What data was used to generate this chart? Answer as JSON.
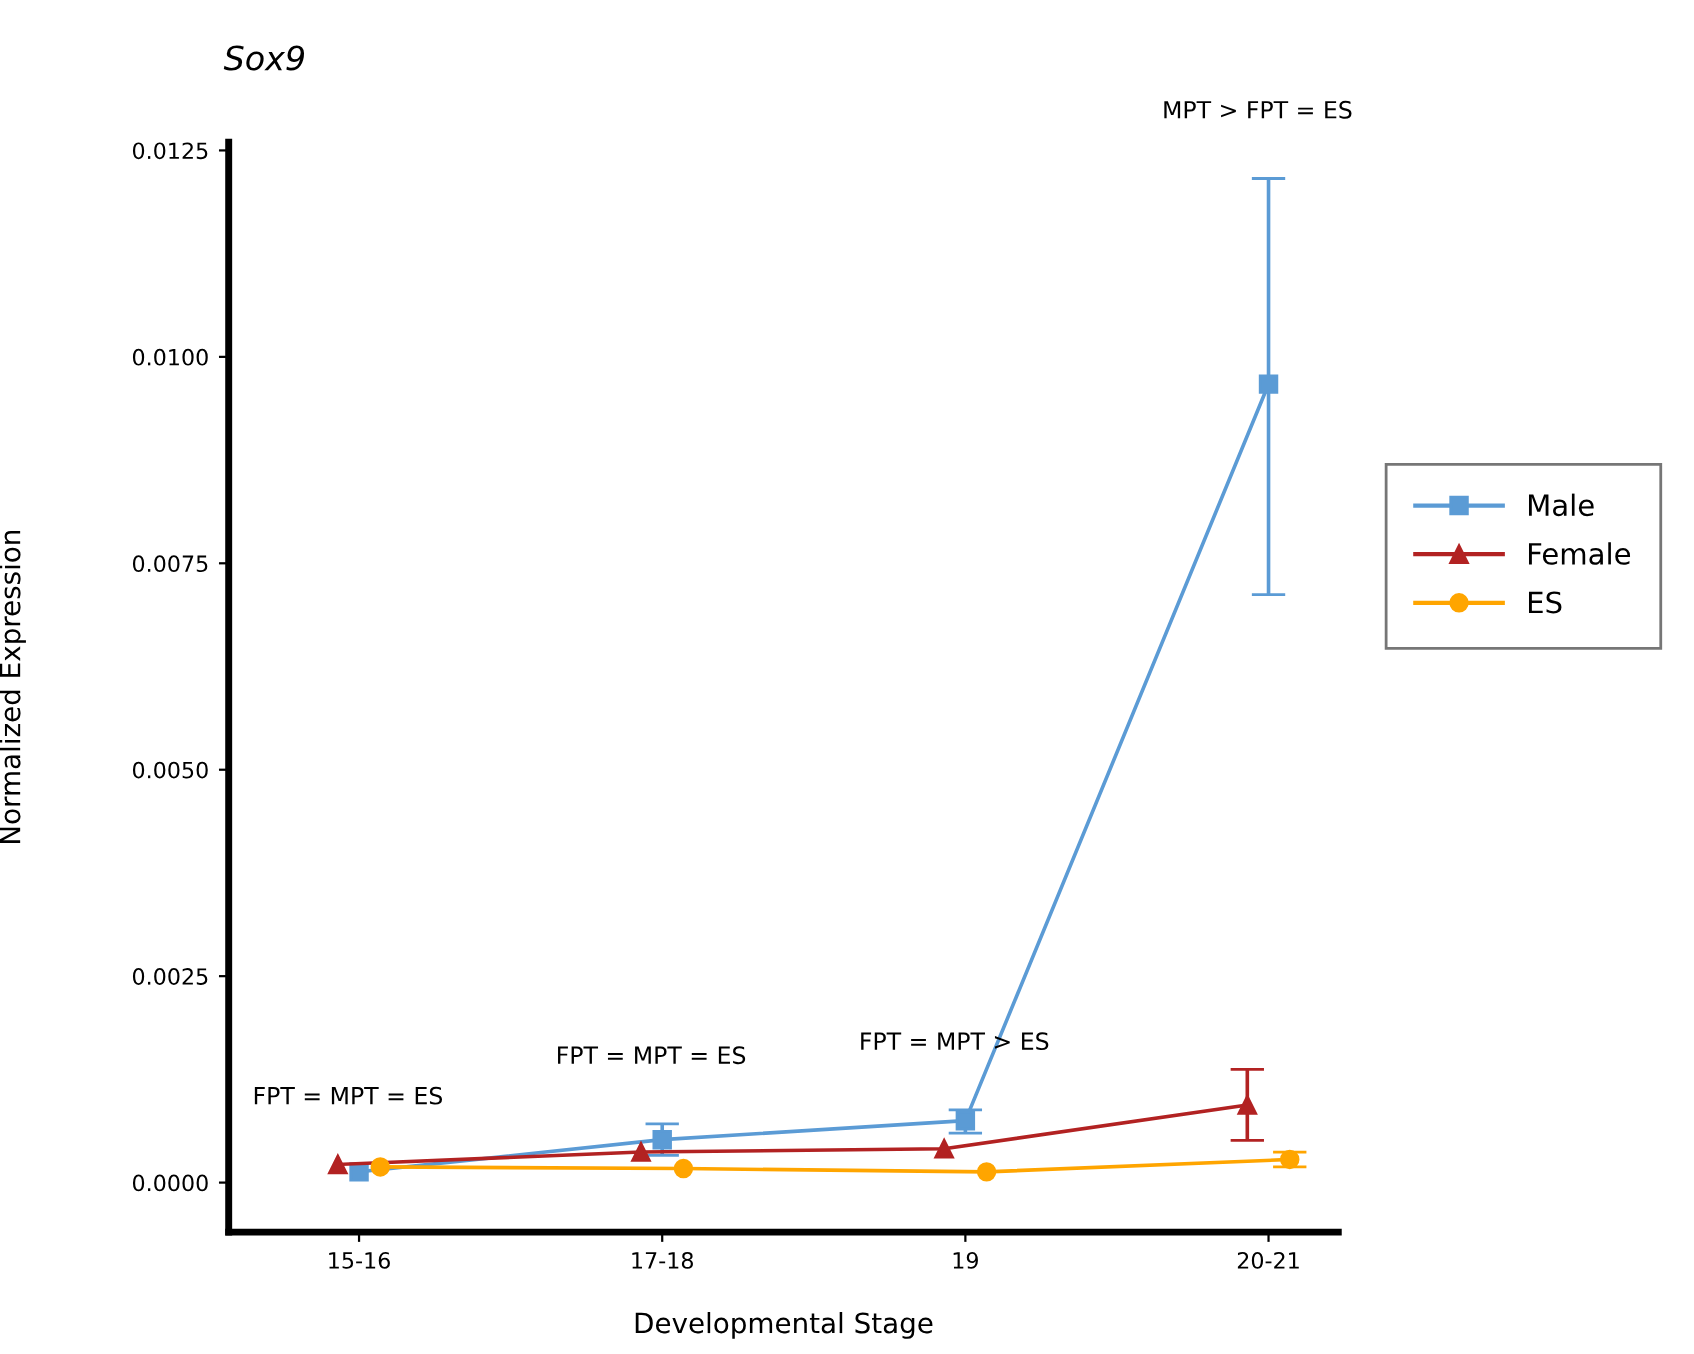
{
  "chart_data": {
    "type": "line",
    "title": "Sox9",
    "xlabel": "Developmental Stage",
    "ylabel": "Normalized Expression",
    "categories": [
      "15-16",
      "17-18",
      "19",
      "20-21"
    ],
    "series": [
      {
        "name": "Male",
        "color": "#5b9bd5",
        "marker": "square",
        "values": [
          0.00013,
          0.00052,
          0.00075,
          0.00967
        ],
        "errors": [
          null,
          [
            0.00033,
            0.00071
          ],
          [
            0.0006,
            0.00088
          ],
          [
            0.00712,
            0.01216
          ]
        ]
      },
      {
        "name": "Female",
        "color": "#b22222",
        "marker": "triangle",
        "values": [
          0.00022,
          0.00037,
          0.00041,
          0.00094
        ],
        "errors": [
          null,
          null,
          null,
          [
            0.00051,
            0.00137
          ]
        ]
      },
      {
        "name": "ES",
        "color": "#ffa500",
        "marker": "circle",
        "values": [
          0.00019,
          0.00017,
          0.00013,
          0.00028
        ],
        "errors": [
          null,
          null,
          null,
          [
            0.00019,
            0.00037
          ]
        ]
      }
    ],
    "ylim": [
      -0.0006,
      0.0126
    ],
    "yticks": [
      {
        "value": 0,
        "label": "0.0000"
      },
      {
        "value": 0.0025,
        "label": "0.0025"
      },
      {
        "value": 0.005,
        "label": "0.0050"
      },
      {
        "value": 0.0075,
        "label": "0.0075"
      },
      {
        "value": 0.01,
        "label": "0.0100"
      },
      {
        "value": 0.0125,
        "label": "0.0125"
      }
    ],
    "annotations": [
      "FPT = MPT = ES",
      "FPT = MPT = ES",
      "FPT = MPT > ES",
      "MPT > FPT = ES"
    ],
    "grid": false,
    "legend": "right",
    "line_style": "solid"
  }
}
